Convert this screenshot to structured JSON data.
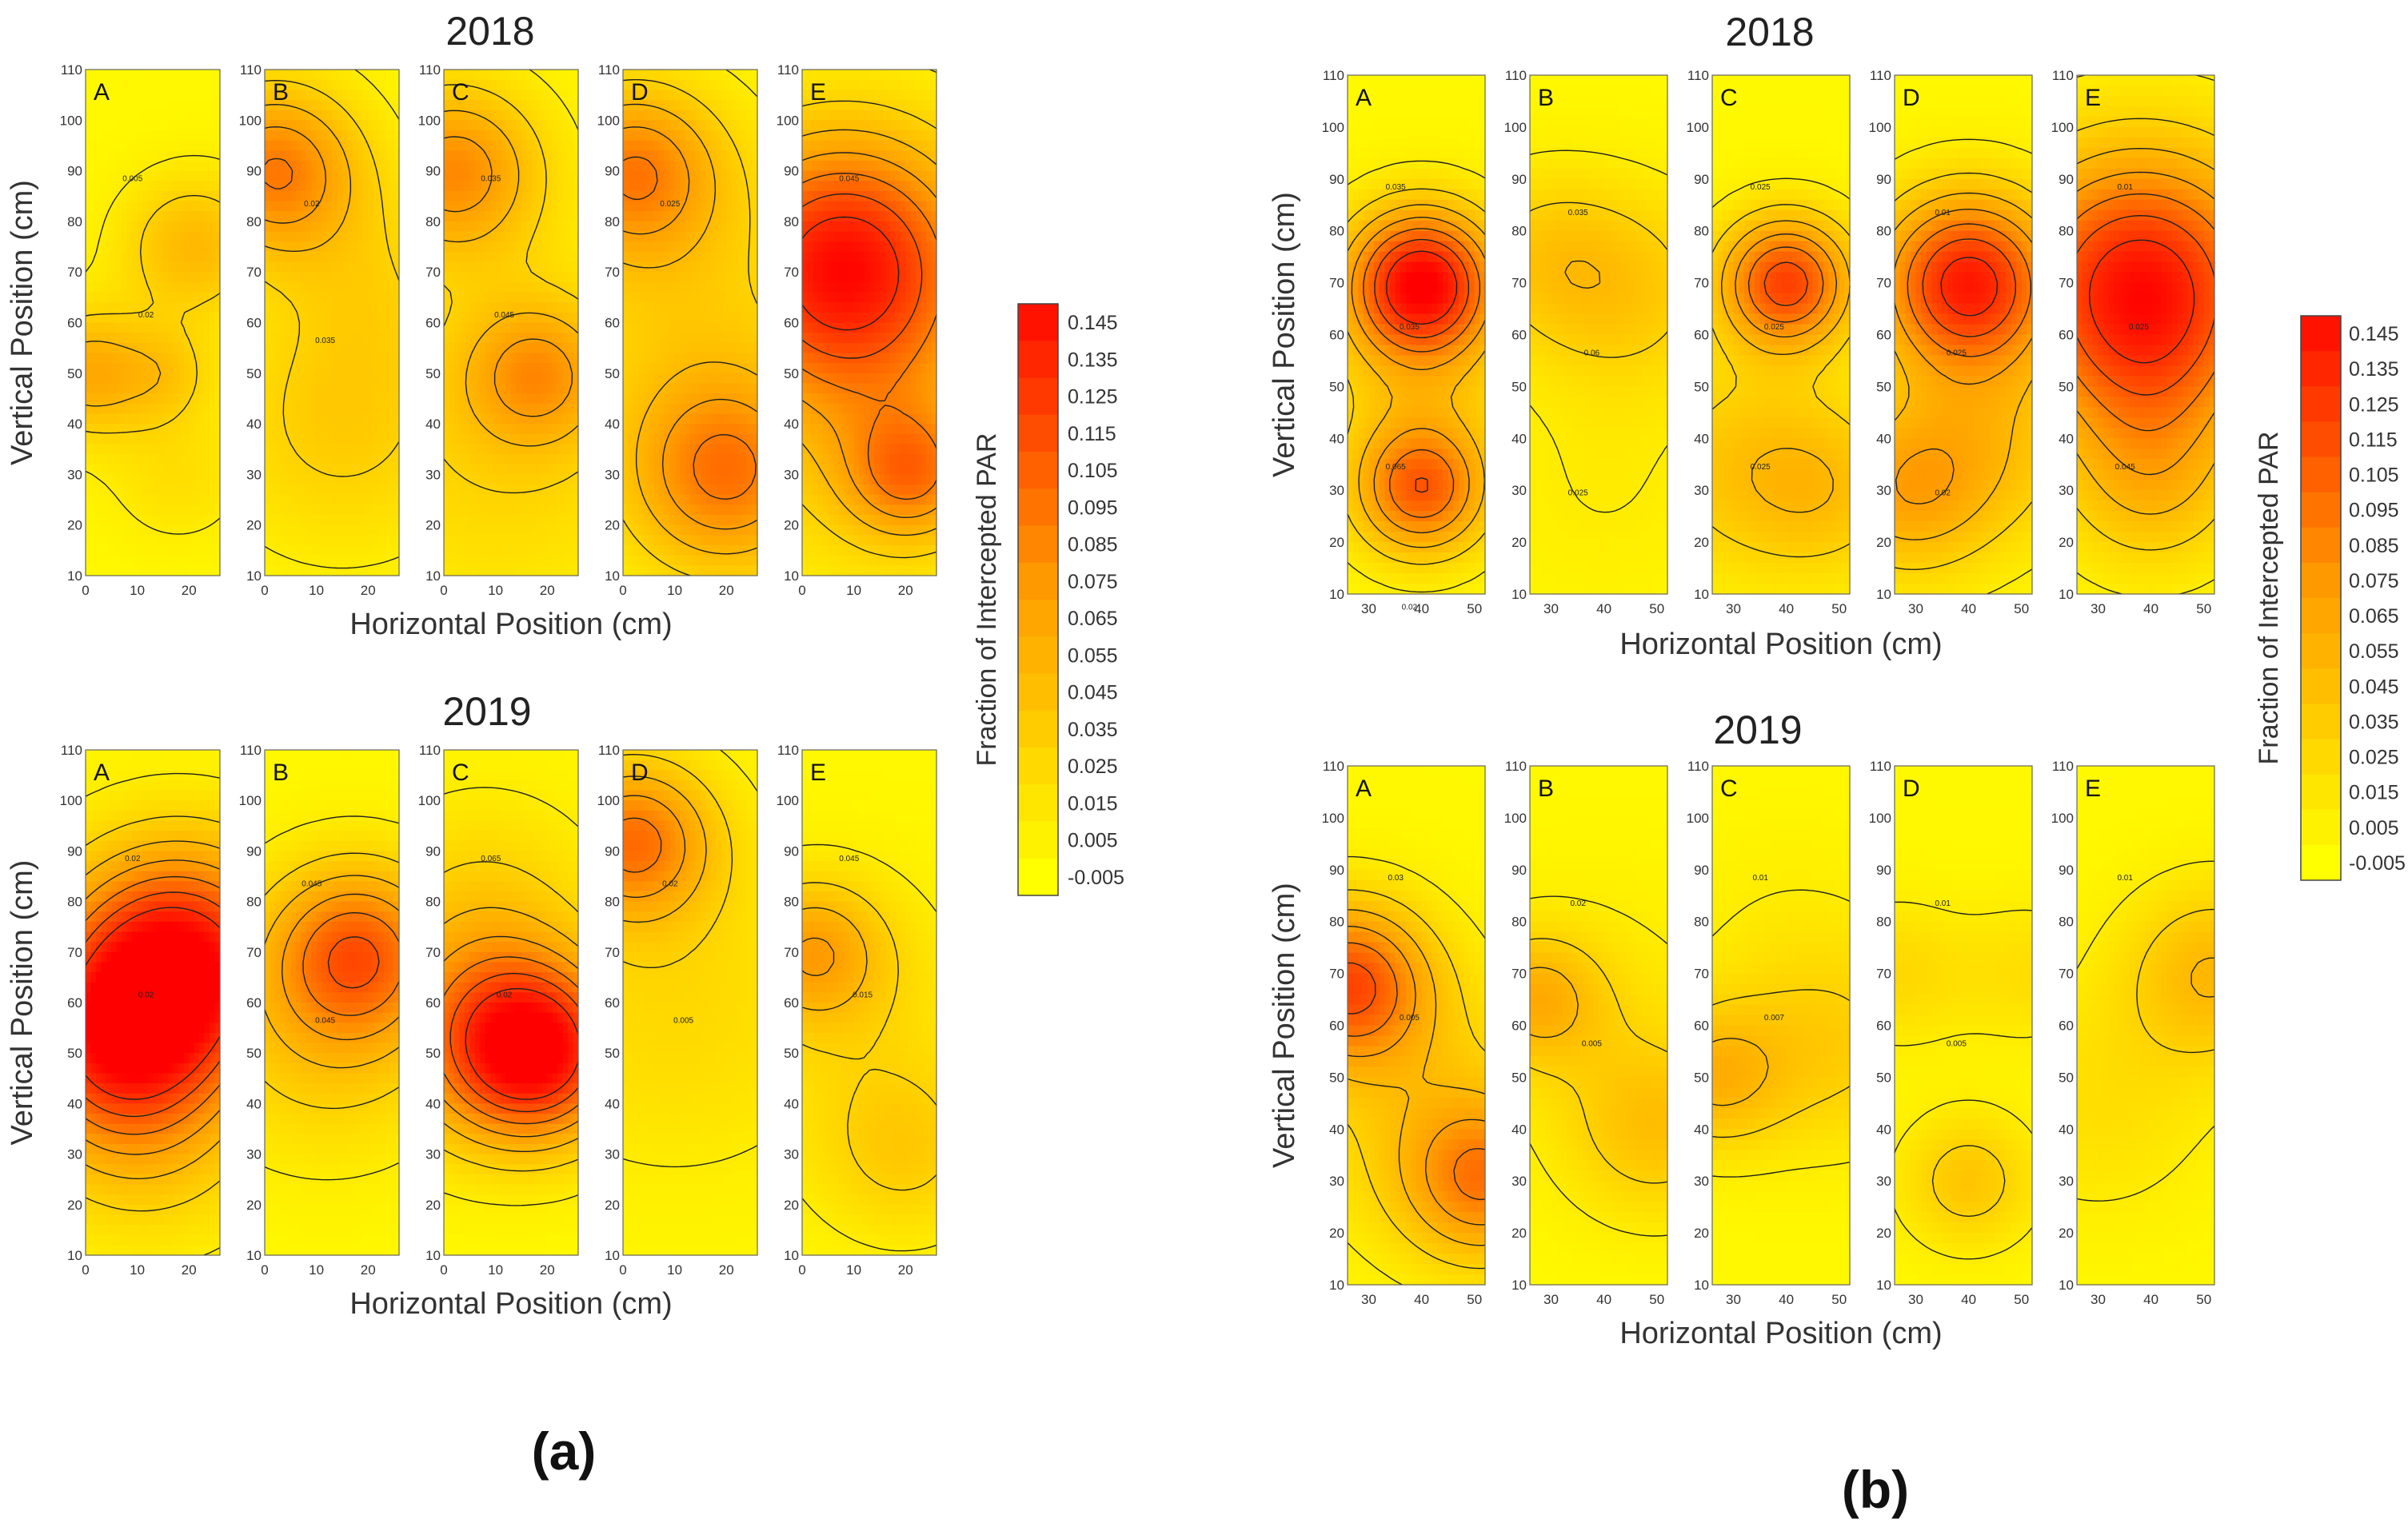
{
  "colors": {
    "low": "#ffff00",
    "mid": "#ff9900",
    "high": "#ff0000",
    "contour": "#202020",
    "minor_contour": "#c8c8c8",
    "frame": "#666666"
  },
  "sub_labels": [
    "(a)",
    "(b)"
  ],
  "chart_data": [
    {
      "id": "a-2018",
      "type": "heatmap",
      "title": "2018",
      "xlabel": "Horizontal Position (cm)",
      "ylabel": "Vertical Position (cm)",
      "panels": [
        "A",
        "B",
        "C",
        "D",
        "E"
      ],
      "x_ticks": [
        "0",
        "10",
        "20"
      ],
      "y_ticks": [
        "10",
        "20",
        "30",
        "40",
        "50",
        "60",
        "70",
        "80",
        "90",
        "100",
        "110"
      ],
      "xlim": [
        0,
        26
      ],
      "ylim": [
        10,
        110
      ],
      "hotspots": [
        [
          {
            "x": 0,
            "y": 50,
            "v": 0.06,
            "s": 9
          },
          {
            "x": 21,
            "y": 75,
            "v": 0.05,
            "s": 10
          },
          {
            "x": 16,
            "y": 50,
            "v": 0.03,
            "s": 7
          },
          {
            "x": 18,
            "y": 30,
            "v": 0.02,
            "s": 10
          }
        ],
        [
          {
            "x": 2,
            "y": 90,
            "v": 0.09,
            "s": 12
          },
          {
            "x": 15,
            "y": 40,
            "v": 0.035,
            "s": 18
          },
          {
            "x": 22,
            "y": 68,
            "v": 0.02,
            "s": 14
          }
        ],
        [
          {
            "x": 2,
            "y": 90,
            "v": 0.08,
            "s": 12
          },
          {
            "x": 18,
            "y": 50,
            "v": 0.06,
            "s": 10
          },
          {
            "x": 10,
            "y": 38,
            "v": 0.03,
            "s": 25
          }
        ],
        [
          {
            "x": 2,
            "y": 90,
            "v": 0.08,
            "s": 12
          },
          {
            "x": 20,
            "y": 30,
            "v": 0.09,
            "s": 14
          },
          {
            "x": 12,
            "y": 65,
            "v": 0.03,
            "s": 22
          }
        ],
        [
          {
            "x": 8,
            "y": 72,
            "v": 0.14,
            "s": 18
          },
          {
            "x": 21,
            "y": 30,
            "v": 0.07,
            "s": 9
          },
          {
            "x": 13,
            "y": 40,
            "v": 0.035,
            "s": 22
          }
        ]
      ],
      "contour_levels": [
        0.01,
        0.03,
        0.05,
        0.07,
        0.09,
        0.11,
        0.13
      ],
      "contour_labels": [
        "0.005",
        "0.02",
        "0.035",
        "0.025",
        "0.045",
        "0.02",
        "0.035",
        "0.045"
      ]
    },
    {
      "id": "a-2019",
      "type": "heatmap",
      "title": "2019",
      "xlabel": "Horizontal Position (cm)",
      "ylabel": "Vertical Position (cm)",
      "panels": [
        "A",
        "B",
        "C",
        "D",
        "E"
      ],
      "x_ticks": [
        "0",
        "10",
        "20"
      ],
      "y_ticks": [
        "10",
        "20",
        "30",
        "40",
        "50",
        "60",
        "70",
        "80",
        "90",
        "100",
        "110"
      ],
      "xlim": [
        0,
        26
      ],
      "ylim": [
        10,
        110
      ],
      "hotspots": [
        [
          {
            "x": 18,
            "y": 68,
            "v": 0.15,
            "s": 16
          },
          {
            "x": 5,
            "y": 52,
            "v": 0.09,
            "s": 14
          },
          {
            "x": 12,
            "y": 35,
            "v": 0.04,
            "s": 16
          }
        ],
        [
          {
            "x": 18,
            "y": 70,
            "v": 0.09,
            "s": 12
          },
          {
            "x": 12,
            "y": 55,
            "v": 0.04,
            "s": 18
          }
        ],
        [
          {
            "x": 18,
            "y": 50,
            "v": 0.13,
            "s": 12
          },
          {
            "x": 6,
            "y": 55,
            "v": 0.06,
            "s": 16
          },
          {
            "x": 8,
            "y": 80,
            "v": 0.025,
            "s": 16
          }
        ],
        [
          {
            "x": 2,
            "y": 92,
            "v": 0.09,
            "s": 11
          },
          {
            "x": 10,
            "y": 60,
            "v": 0.025,
            "s": 24
          }
        ],
        [
          {
            "x": 2,
            "y": 70,
            "v": 0.06,
            "s": 10
          },
          {
            "x": 20,
            "y": 30,
            "v": 0.03,
            "s": 12
          },
          {
            "x": 10,
            "y": 55,
            "v": 0.02,
            "s": 20
          }
        ]
      ],
      "contour_levels": [
        0.01,
        0.03,
        0.05,
        0.07,
        0.09,
        0.11,
        0.13
      ],
      "contour_labels": [
        "0.02",
        "0.045",
        "0.065",
        "0.02",
        "0.045",
        "0.02",
        "0.045",
        "0.02",
        "0.005",
        "0.015"
      ]
    },
    {
      "id": "b-2018",
      "type": "heatmap",
      "title": "2018",
      "xlabel": "Horizontal Position (cm)",
      "ylabel": "Vertical Position (cm)",
      "panels": [
        "A",
        "B",
        "C",
        "D",
        "E"
      ],
      "x_ticks": [
        "30",
        "40",
        "50"
      ],
      "y_ticks": [
        "10",
        "20",
        "30",
        "40",
        "50",
        "60",
        "70",
        "80",
        "90",
        "100",
        "110"
      ],
      "xlim": [
        26,
        52
      ],
      "ylim": [
        10,
        110
      ],
      "hotspots": [
        [
          {
            "x": 40,
            "y": 70,
            "v": 0.15,
            "s": 10
          },
          {
            "x": 40,
            "y": 30,
            "v": 0.1,
            "s": 9
          },
          {
            "x": 40,
            "y": 50,
            "v": 0.03,
            "s": 14
          }
        ],
        [
          {
            "x": 45,
            "y": 68,
            "v": 0.035,
            "s": 14
          },
          {
            "x": 28,
            "y": 75,
            "v": 0.03,
            "s": 12
          },
          {
            "x": 40,
            "y": 30,
            "v": 0.01,
            "s": 16
          }
        ],
        [
          {
            "x": 40,
            "y": 70,
            "v": 0.12,
            "s": 9
          },
          {
            "x": 30,
            "y": 35,
            "v": 0.035,
            "s": 15
          },
          {
            "x": 48,
            "y": 30,
            "v": 0.035,
            "s": 12
          }
        ],
        [
          {
            "x": 40,
            "y": 70,
            "v": 0.14,
            "s": 12
          },
          {
            "x": 28,
            "y": 30,
            "v": 0.06,
            "s": 12
          },
          {
            "x": 46,
            "y": 40,
            "v": 0.035,
            "s": 14
          }
        ],
        [
          {
            "x": 38,
            "y": 70,
            "v": 0.14,
            "s": 18
          },
          {
            "x": 40,
            "y": 30,
            "v": 0.04,
            "s": 12
          },
          {
            "x": 40,
            "y": 50,
            "v": 0.03,
            "s": 14
          }
        ]
      ],
      "contour_levels": [
        0.01,
        0.03,
        0.05,
        0.07,
        0.09,
        0.11,
        0.13
      ],
      "contour_labels": [
        "0.035",
        "0.035",
        "0.025",
        "0.01",
        "0.01",
        "0.035",
        "0.06",
        "0.025",
        "0.025",
        "0.025",
        "0.065",
        "0.025",
        "0.025",
        "0.02",
        "0.045",
        "0.02"
      ]
    },
    {
      "id": "b-2019",
      "type": "heatmap",
      "title": "2019",
      "xlabel": "Horizontal Position (cm)",
      "ylabel": "Vertical Position (cm)",
      "panels": [
        "A",
        "B",
        "C",
        "D",
        "E"
      ],
      "x_ticks": [
        "30",
        "40",
        "50"
      ],
      "y_ticks": [
        "10",
        "20",
        "30",
        "40",
        "50",
        "60",
        "70",
        "80",
        "90",
        "100",
        "110"
      ],
      "xlim": [
        26,
        52
      ],
      "ylim": [
        10,
        110
      ],
      "hotspots": [
        [
          {
            "x": 26,
            "y": 68,
            "v": 0.11,
            "s": 11
          },
          {
            "x": 52,
            "y": 30,
            "v": 0.08,
            "s": 11
          },
          {
            "x": 40,
            "y": 45,
            "v": 0.03,
            "s": 18
          }
        ],
        [
          {
            "x": 27,
            "y": 65,
            "v": 0.05,
            "s": 9
          },
          {
            "x": 50,
            "y": 40,
            "v": 0.04,
            "s": 12
          },
          {
            "x": 40,
            "y": 62,
            "v": 0.015,
            "s": 18
          }
        ],
        [
          {
            "x": 26,
            "y": 50,
            "v": 0.05,
            "s": 10
          },
          {
            "x": 50,
            "y": 55,
            "v": 0.03,
            "s": 14
          },
          {
            "x": 40,
            "y": 75,
            "v": 0.01,
            "s": 16
          }
        ],
        [
          {
            "x": 40,
            "y": 30,
            "v": 0.04,
            "s": 9
          },
          {
            "x": 26,
            "y": 70,
            "v": 0.025,
            "s": 10
          },
          {
            "x": 52,
            "y": 70,
            "v": 0.02,
            "s": 10
          }
        ],
        [
          {
            "x": 52,
            "y": 70,
            "v": 0.05,
            "s": 12
          },
          {
            "x": 30,
            "y": 45,
            "v": 0.02,
            "s": 16
          }
        ]
      ],
      "contour_levels": [
        0.01,
        0.03,
        0.05,
        0.07,
        0.09,
        0.11,
        0.13
      ],
      "contour_labels": [
        "0.03",
        "0.02",
        "0.01",
        "0.01",
        "0.01",
        "0.005",
        "0.005",
        "0.007",
        "0.005"
      ]
    }
  ],
  "colorbars": [
    {
      "title": "Fraction of Intercepted PAR",
      "ticks": [
        "0.145",
        "0.135",
        "0.125",
        "0.115",
        "0.105",
        "0.095",
        "0.085",
        "0.075",
        "0.065",
        "0.055",
        "0.045",
        "0.035",
        "0.025",
        "0.015",
        "0.005",
        "-0.005"
      ],
      "range": [
        -0.005,
        0.155
      ]
    },
    {
      "title": "Fraction of Intercepted PAR",
      "ticks": [
        "0.145",
        "0.135",
        "0.125",
        "0.115",
        "0.105",
        "0.095",
        "0.085",
        "0.075",
        "0.065",
        "0.055",
        "0.045",
        "0.035",
        "0.025",
        "0.015",
        "0.005",
        "-0.005"
      ],
      "range": [
        -0.005,
        0.155
      ]
    }
  ]
}
